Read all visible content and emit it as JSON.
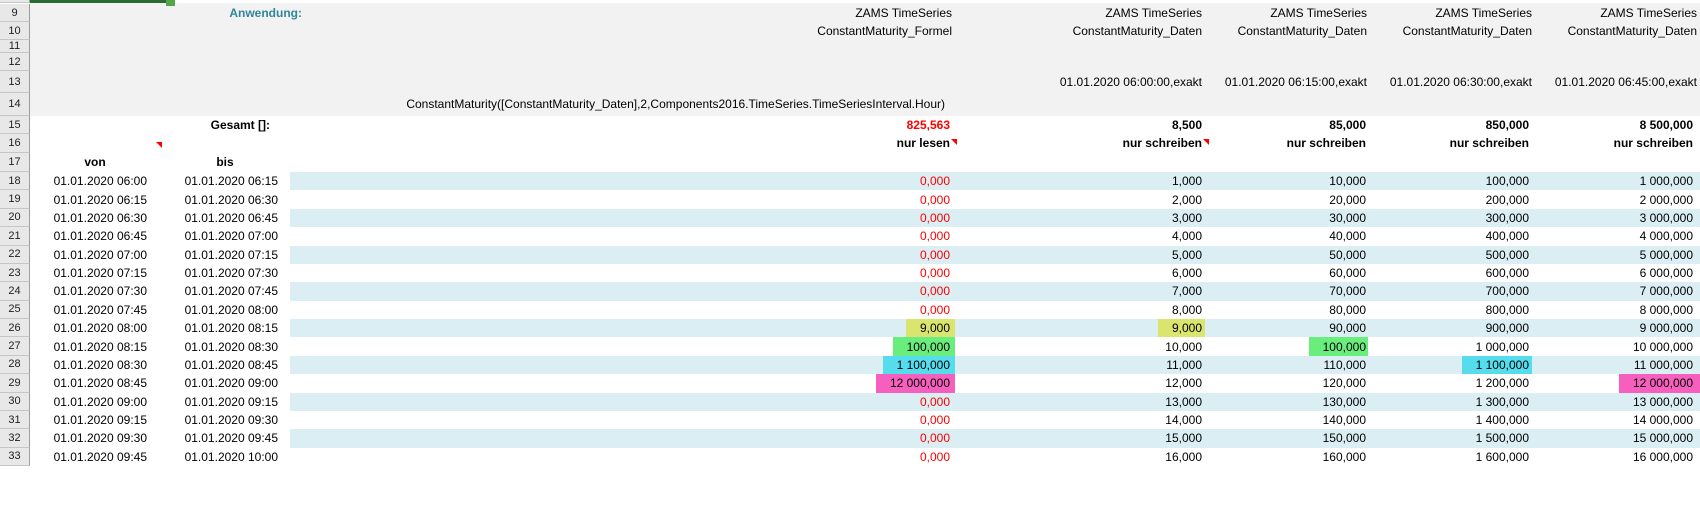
{
  "sheet": {
    "row_numbers": [
      9,
      10,
      11,
      12,
      13,
      14,
      15,
      16,
      17,
      18,
      19,
      20,
      21,
      22,
      23,
      24,
      25,
      26,
      27,
      28,
      29,
      30,
      31,
      32,
      33
    ],
    "anwendung_label": "Anwendung:",
    "gesamt_label": "Gesamt []:",
    "formula": "ConstantMaturity([ConstantMaturity_Daten],2,Components2016.TimeSeries.TimeSeriesInterval.Hour)",
    "von_header": "von",
    "bis_header": "bis",
    "columns": [
      {
        "id": "C",
        "title1": "ZAMS TimeSeries",
        "title2": "ConstantMaturity_Formel",
        "date": "",
        "total": "825,563",
        "total_red": true,
        "mode": "nur lesen",
        "has_comment": true
      },
      {
        "id": "D",
        "title1": "ZAMS TimeSeries",
        "title2": "ConstantMaturity_Daten",
        "date": "01.01.2020 06:00:00,exakt",
        "total": "8,500",
        "total_red": false,
        "mode": "nur schreiben",
        "has_comment": true
      },
      {
        "id": "E",
        "title1": "ZAMS TimeSeries",
        "title2": "ConstantMaturity_Daten",
        "date": "01.01.2020 06:15:00,exakt",
        "total": "85,000",
        "total_red": false,
        "mode": "nur schreiben",
        "has_comment": false
      },
      {
        "id": "F",
        "title1": "ZAMS TimeSeries",
        "title2": "ConstantMaturity_Daten",
        "date": "01.01.2020 06:30:00,exakt",
        "total": "850,000",
        "total_red": false,
        "mode": "nur schreiben",
        "has_comment": false
      },
      {
        "id": "G",
        "title1": "ZAMS TimeSeries",
        "title2": "ConstantMaturity_Daten",
        "date": "01.01.2020 06:45:00,exakt",
        "total": "8 500,000",
        "total_red": false,
        "mode": "nur schreiben",
        "has_comment": false
      }
    ],
    "rows": [
      {
        "num": 18,
        "von": "01.01.2020 06:00",
        "bis": "01.01.2020 06:15",
        "c": {
          "v": "0,000",
          "red": true
        },
        "d": {
          "v": "1,000"
        },
        "e": {
          "v": "10,000"
        },
        "f": {
          "v": "100,000"
        },
        "g": {
          "v": "1 000,000"
        }
      },
      {
        "num": 19,
        "von": "01.01.2020 06:15",
        "bis": "01.01.2020 06:30",
        "c": {
          "v": "0,000",
          "red": true
        },
        "d": {
          "v": "2,000"
        },
        "e": {
          "v": "20,000"
        },
        "f": {
          "v": "200,000"
        },
        "g": {
          "v": "2 000,000"
        }
      },
      {
        "num": 20,
        "von": "01.01.2020 06:30",
        "bis": "01.01.2020 06:45",
        "c": {
          "v": "0,000",
          "red": true
        },
        "d": {
          "v": "3,000"
        },
        "e": {
          "v": "30,000"
        },
        "f": {
          "v": "300,000"
        },
        "g": {
          "v": "3 000,000"
        }
      },
      {
        "num": 21,
        "von": "01.01.2020 06:45",
        "bis": "01.01.2020 07:00",
        "c": {
          "v": "0,000",
          "red": true
        },
        "d": {
          "v": "4,000"
        },
        "e": {
          "v": "40,000"
        },
        "f": {
          "v": "400,000"
        },
        "g": {
          "v": "4 000,000"
        }
      },
      {
        "num": 22,
        "von": "01.01.2020 07:00",
        "bis": "01.01.2020 07:15",
        "c": {
          "v": "0,000",
          "red": true
        },
        "d": {
          "v": "5,000"
        },
        "e": {
          "v": "50,000"
        },
        "f": {
          "v": "500,000"
        },
        "g": {
          "v": "5 000,000"
        }
      },
      {
        "num": 23,
        "von": "01.01.2020 07:15",
        "bis": "01.01.2020 07:30",
        "c": {
          "v": "0,000",
          "red": true
        },
        "d": {
          "v": "6,000"
        },
        "e": {
          "v": "60,000"
        },
        "f": {
          "v": "600,000"
        },
        "g": {
          "v": "6 000,000"
        }
      },
      {
        "num": 24,
        "von": "01.01.2020 07:30",
        "bis": "01.01.2020 07:45",
        "c": {
          "v": "0,000",
          "red": true
        },
        "d": {
          "v": "7,000"
        },
        "e": {
          "v": "70,000"
        },
        "f": {
          "v": "700,000"
        },
        "g": {
          "v": "7 000,000"
        }
      },
      {
        "num": 25,
        "von": "01.01.2020 07:45",
        "bis": "01.01.2020 08:00",
        "c": {
          "v": "0,000",
          "red": true
        },
        "d": {
          "v": "8,000"
        },
        "e": {
          "v": "80,000"
        },
        "f": {
          "v": "800,000"
        },
        "g": {
          "v": "8 000,000"
        }
      },
      {
        "num": 26,
        "von": "01.01.2020 08:00",
        "bis": "01.01.2020 08:15",
        "c": {
          "v": "9,000",
          "hl": "yellow"
        },
        "d": {
          "v": "9,000",
          "hl": "yellow"
        },
        "e": {
          "v": "90,000"
        },
        "f": {
          "v": "900,000"
        },
        "g": {
          "v": "9 000,000"
        }
      },
      {
        "num": 27,
        "von": "01.01.2020 08:15",
        "bis": "01.01.2020 08:30",
        "c": {
          "v": "100,000",
          "hl": "green"
        },
        "d": {
          "v": "10,000"
        },
        "e": {
          "v": "100,000",
          "hl": "green"
        },
        "f": {
          "v": "1 000,000"
        },
        "g": {
          "v": "10 000,000"
        }
      },
      {
        "num": 28,
        "von": "01.01.2020 08:30",
        "bis": "01.01.2020 08:45",
        "c": {
          "v": "1 100,000",
          "hl": "cyan"
        },
        "d": {
          "v": "11,000"
        },
        "e": {
          "v": "110,000"
        },
        "f": {
          "v": "1 100,000",
          "hl": "cyan"
        },
        "g": {
          "v": "11 000,000"
        }
      },
      {
        "num": 29,
        "von": "01.01.2020 08:45",
        "bis": "01.01.2020 09:00",
        "c": {
          "v": "12 000,000",
          "hl": "pink"
        },
        "d": {
          "v": "12,000"
        },
        "e": {
          "v": "120,000"
        },
        "f": {
          "v": "1 200,000"
        },
        "g": {
          "v": "12 000,000",
          "hl": "pink"
        }
      },
      {
        "num": 30,
        "von": "01.01.2020 09:00",
        "bis": "01.01.2020 09:15",
        "c": {
          "v": "0,000",
          "red": true
        },
        "d": {
          "v": "13,000"
        },
        "e": {
          "v": "130,000"
        },
        "f": {
          "v": "1 300,000"
        },
        "g": {
          "v": "13 000,000"
        }
      },
      {
        "num": 31,
        "von": "01.01.2020 09:15",
        "bis": "01.01.2020 09:30",
        "c": {
          "v": "0,000",
          "red": true
        },
        "d": {
          "v": "14,000"
        },
        "e": {
          "v": "140,000"
        },
        "f": {
          "v": "1 400,000"
        },
        "g": {
          "v": "14 000,000"
        }
      },
      {
        "num": 32,
        "von": "01.01.2020 09:30",
        "bis": "01.01.2020 09:45",
        "c": {
          "v": "0,000",
          "red": true
        },
        "d": {
          "v": "15,000"
        },
        "e": {
          "v": "150,000"
        },
        "f": {
          "v": "1 500,000"
        },
        "g": {
          "v": "15 000,000"
        }
      },
      {
        "num": 33,
        "von": "01.01.2020 09:45",
        "bis": "01.01.2020 10:00",
        "c": {
          "v": "0,000",
          "red": true
        },
        "d": {
          "v": "16,000"
        },
        "e": {
          "v": "160,000"
        },
        "f": {
          "v": "1 600,000"
        },
        "g": {
          "v": "16 000,000"
        }
      }
    ],
    "colors": {
      "accent_teal": "#31859c",
      "value_red": "#ff0000",
      "band_cyan": "#daeef3",
      "top_rows_gray": "#f2f2f2",
      "highlight_yellow": "#d9e56f",
      "highlight_green": "#69ee7d",
      "highlight_cyan": "#55ddee",
      "highlight_pink": "#f75fbe",
      "sheet_green_bar": "#2a6b35",
      "selection_handle_green": "#55a546",
      "comment_indicator_red": "#ff0000"
    }
  }
}
